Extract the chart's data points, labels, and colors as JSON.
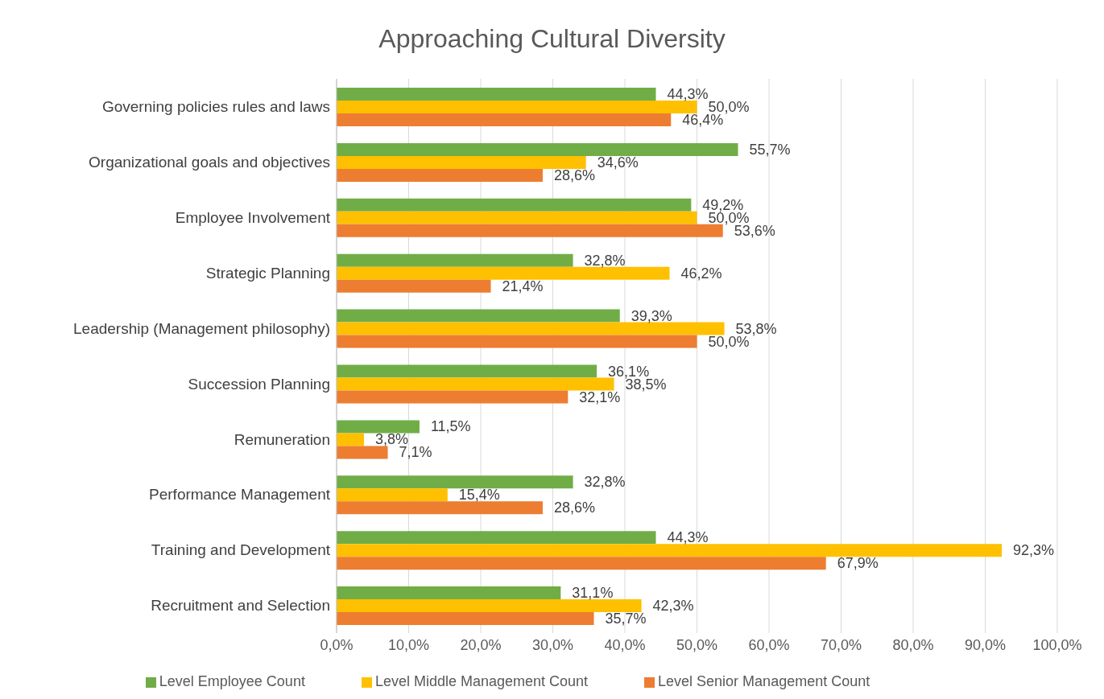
{
  "chart_data": {
    "type": "bar",
    "orientation": "horizontal",
    "title": "Approaching Cultural Diversity",
    "categories": [
      "Governing policies rules and laws",
      "Organizational goals and objectives",
      "Employee Involvement",
      "Strategic Planning",
      "Leadership (Management philosophy)",
      "Succession Planning",
      "Remuneration",
      "Performance Management",
      "Training and Development",
      "Recruitment and Selection"
    ],
    "series": [
      {
        "name": "Level Employee Count",
        "color": "#70ad47",
        "values": [
          44.3,
          55.7,
          49.2,
          32.8,
          39.3,
          36.1,
          11.5,
          32.8,
          44.3,
          31.1
        ],
        "value_labels": [
          "44,3%",
          "55,7%",
          "49,2%",
          "32,8%",
          "39,3%",
          "36,1%",
          "11,5%",
          "32,8%",
          "44,3%",
          "31,1%"
        ]
      },
      {
        "name": "Level Middle Management Count",
        "color": "#ffc000",
        "values": [
          50.0,
          34.6,
          50.0,
          46.2,
          53.8,
          38.5,
          3.8,
          15.4,
          92.3,
          42.3
        ],
        "value_labels": [
          "50,0%",
          "34,6%",
          "50,0%",
          "46,2%",
          "53,8%",
          "38,5%",
          "3,8%",
          "15,4%",
          "92,3%",
          "42,3%"
        ]
      },
      {
        "name": "Level Senior Management Count",
        "color": "#ed7d31",
        "values": [
          46.4,
          28.6,
          53.6,
          21.4,
          50.0,
          32.1,
          7.1,
          28.6,
          67.9,
          35.7
        ],
        "value_labels": [
          "46,4%",
          "28,6%",
          "53,6%",
          "21,4%",
          "50,0%",
          "32,1%",
          "7,1%",
          "28,6%",
          "67,9%",
          "35,7%"
        ]
      }
    ],
    "xlim": [
      0,
      100
    ],
    "xticks": [
      {
        "value": 0,
        "label": "0,0%"
      },
      {
        "value": 10,
        "label": "10,0%"
      },
      {
        "value": 20,
        "label": "20,0%"
      },
      {
        "value": 30,
        "label": "30,0%"
      },
      {
        "value": 40,
        "label": "40,0%"
      },
      {
        "value": 50,
        "label": "50,0%"
      },
      {
        "value": 60,
        "label": "60,0%"
      },
      {
        "value": 70,
        "label": "70,0%"
      },
      {
        "value": 80,
        "label": "80,0%"
      },
      {
        "value": 90,
        "label": "90,0%"
      },
      {
        "value": 100,
        "label": "100,0%"
      }
    ],
    "grid": "x",
    "legend": "bottom"
  }
}
